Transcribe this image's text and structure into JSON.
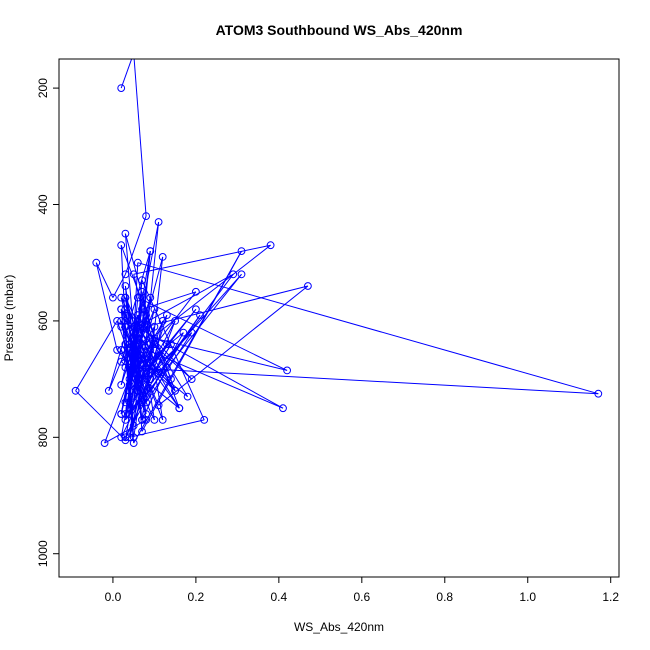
{
  "chart_data": {
    "type": "line",
    "title": "ATOM3 Southbound WS_Abs_420nm",
    "xlabel": "WS_Abs_420nm",
    "ylabel": "Pressure (mbar)",
    "xlim": [
      -0.13,
      1.22
    ],
    "ylim": [
      1040,
      150
    ],
    "y_reversed": true,
    "x_ticks": [
      "0.0",
      "0.2",
      "0.4",
      "0.6",
      "0.8",
      "1.0",
      "1.2"
    ],
    "y_ticks": [
      "200",
      "400",
      "600",
      "800",
      "1000"
    ],
    "series_color": "#0000ff",
    "marker": "open-circle",
    "grid": false,
    "x": [
      0.02,
      0.05,
      0.08,
      0.03,
      0.0,
      -0.04,
      0.01,
      0.07,
      0.11,
      0.02,
      0.06,
      0.09,
      0.04,
      0.13,
      0.05,
      0.03,
      0.08,
      -0.02,
      0.06,
      0.15,
      0.02,
      0.04,
      0.1,
      0.07,
      0.03,
      -0.09,
      0.01,
      0.05,
      0.12,
      0.08,
      0.19,
      0.06,
      0.03,
      0.09,
      0.04,
      0.22,
      0.07,
      0.05,
      0.02,
      0.11,
      0.47,
      0.08,
      0.03,
      1.17,
      0.06,
      0.04,
      0.14,
      0.09,
      0.02,
      0.05,
      0.31,
      0.07,
      0.03,
      0.1,
      0.42,
      0.06,
      0.04,
      0.08,
      0.16,
      0.02,
      0.38,
      0.05,
      0.09,
      0.03,
      0.07,
      0.2,
      0.04,
      0.06,
      0.29,
      0.11,
      0.02,
      0.08,
      0.05,
      0.41,
      0.03,
      0.13,
      0.07,
      0.04,
      0.18,
      0.06,
      0.02,
      0.09,
      0.05,
      0.17,
      0.03,
      0.07,
      0.21,
      0.04,
      0.1,
      0.06,
      0.02,
      0.15,
      0.08,
      0.05,
      0.03,
      0.12,
      0.07,
      0.04,
      0.06,
      -0.01,
      0.09,
      0.05,
      0.03,
      0.14,
      0.08,
      0.02,
      0.06,
      0.04,
      0.11,
      0.07,
      0.03,
      0.19,
      0.05,
      0.08,
      0.02,
      0.1,
      0.06,
      0.04,
      0.13,
      0.07,
      0.03,
      0.09,
      0.05,
      0.16,
      0.02,
      0.08,
      0.04,
      0.06,
      0.31,
      0.03,
      0.07,
      0.05,
      0.12,
      0.09,
      0.02,
      0.06,
      0.04,
      0.2,
      0.08,
      0.03,
      0.05,
      0.07,
      0.1,
      0.04,
      0.02,
      0.06,
      0.15,
      0.08,
      0.03,
      0.05
    ],
    "y": [
      200,
      140,
      420,
      520,
      560,
      500,
      650,
      700,
      430,
      760,
      610,
      480,
      800,
      590,
      690,
      540,
      770,
      810,
      660,
      720,
      470,
      750,
      580,
      630,
      805,
      720,
      600,
      680,
      490,
      740,
      620,
      710,
      560,
      650,
      800,
      770,
      530,
      690,
      600,
      745,
      540,
      610,
      680,
      725,
      500,
      760,
      640,
      700,
      580,
      810,
      480,
      790,
      450,
      630,
      685,
      560,
      710,
      600,
      750,
      670,
      470,
      520,
      640,
      760,
      580,
      550,
      700,
      610,
      520,
      690,
      560,
      730,
      640,
      750,
      600,
      680,
      770,
      650,
      730,
      590,
      710,
      560,
      690,
      620,
      800,
      740,
      590,
      760,
      640,
      700,
      580,
      720,
      660,
      800,
      610,
      770,
      550,
      740,
      600,
      720,
      480,
      780,
      640,
      700,
      590,
      760,
      630,
      720,
      660,
      740,
      580,
      700,
      610,
      760,
      650,
      770,
      590,
      720,
      640,
      700,
      560,
      690,
      620,
      750,
      610,
      680,
      640,
      720,
      520,
      770,
      660,
      740,
      600,
      700,
      800,
      650,
      720,
      580,
      690,
      740,
      630,
      770,
      610,
      680,
      650,
      720,
      600,
      730,
      640,
      690
    ]
  }
}
